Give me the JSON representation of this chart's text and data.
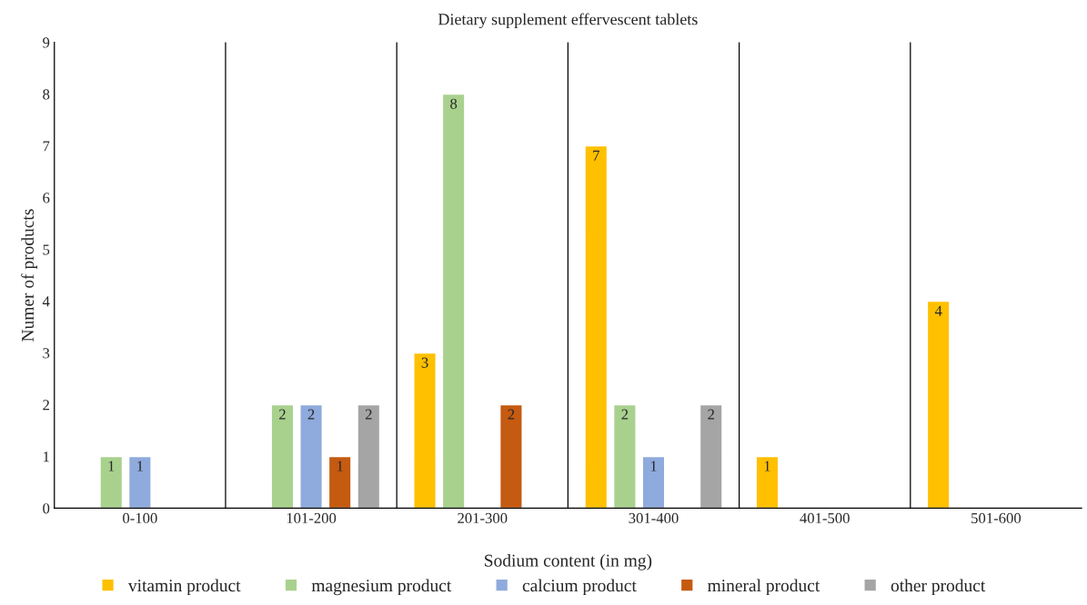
{
  "chart_data": {
    "type": "bar",
    "title": "Dietary supplement effervescent tablets",
    "xlabel": "Sodium content (in mg)",
    "ylabel": "Numer of products",
    "categories": [
      "0-100",
      "101-200",
      "201-300",
      "301-400",
      "401-500",
      "501-600"
    ],
    "series": [
      {
        "name": "vitamin product",
        "color": "#ffc000",
        "values": [
          null,
          null,
          3,
          7,
          1,
          4
        ]
      },
      {
        "name": "magnesium product",
        "color": "#a9d18e",
        "values": [
          1,
          2,
          8,
          2,
          null,
          null
        ]
      },
      {
        "name": "calcium product",
        "color": "#8faadc",
        "values": [
          1,
          2,
          null,
          1,
          null,
          null
        ]
      },
      {
        "name": "mineral product",
        "color": "#c55a11",
        "values": [
          null,
          1,
          2,
          null,
          null,
          null
        ]
      },
      {
        "name": "other product",
        "color": "#a5a5a5",
        "values": [
          null,
          2,
          null,
          2,
          null,
          null
        ]
      }
    ],
    "ylim": [
      0,
      9
    ],
    "yticks": [
      0,
      1,
      2,
      3,
      4,
      5,
      6,
      7,
      8,
      9
    ],
    "grid": "x",
    "legend": "bottom",
    "data_labels": true
  }
}
